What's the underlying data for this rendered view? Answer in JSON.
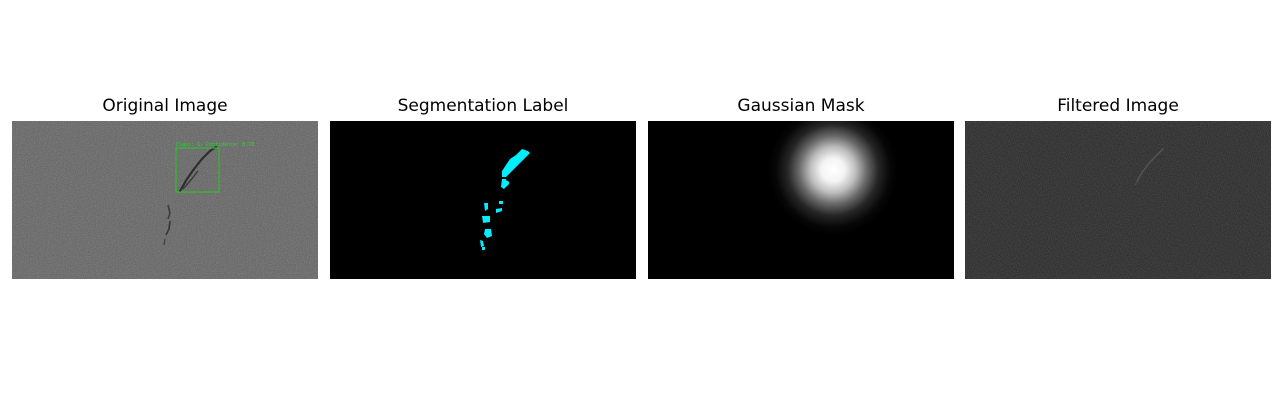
{
  "panels": [
    {
      "title": "Original Image"
    },
    {
      "title": "Segmentation Label"
    },
    {
      "title": "Gaussian Mask"
    },
    {
      "title": "Filtered Image"
    }
  ],
  "detection": {
    "label": "Class: 1, Confidence: 0.78"
  },
  "colors": {
    "bbox": "#22cc22",
    "segmentation": "#00eeff",
    "background_gray": "#5f5f5f",
    "filtered_background": "#222222"
  }
}
